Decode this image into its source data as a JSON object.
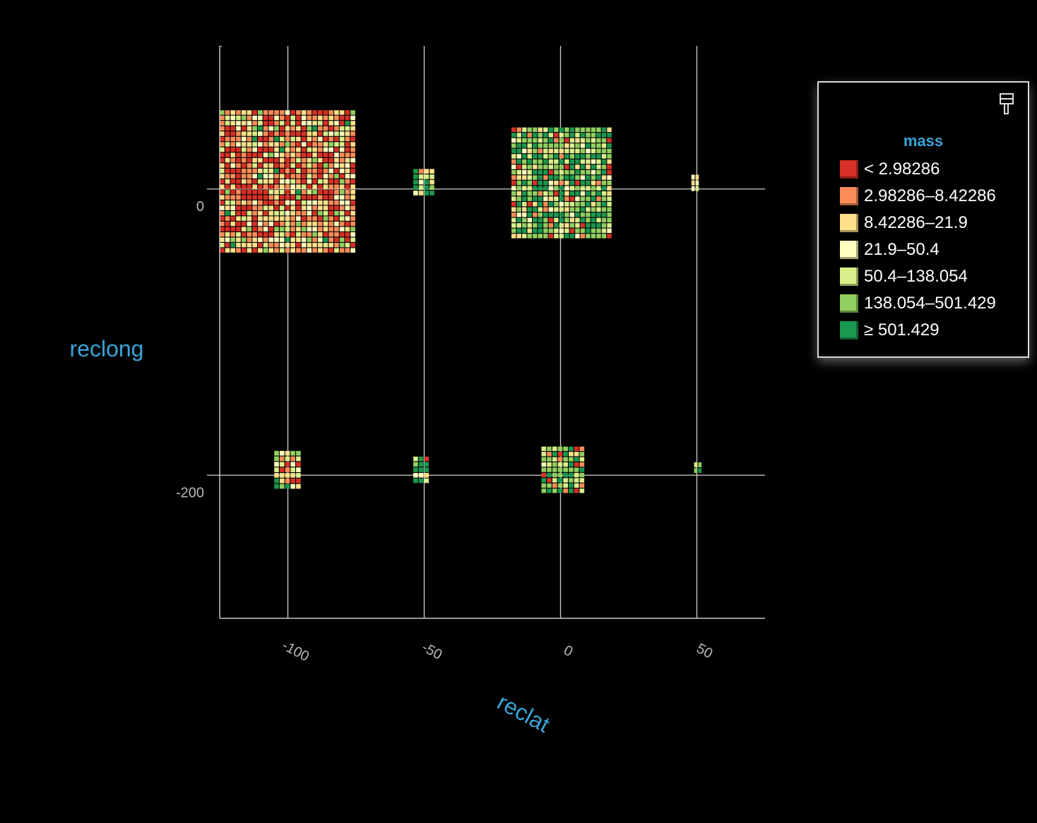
{
  "chart_data": {
    "type": "heatmap",
    "xlabel": "reclat",
    "ylabel": "reclong",
    "x_ticks": [
      -100,
      -50,
      0,
      50
    ],
    "x_tick_labels": [
      "-100",
      "-50",
      "0",
      "50"
    ],
    "y_ticks": [
      0,
      -200
    ],
    "y_tick_labels": [
      "0",
      "-200"
    ],
    "xlim": [
      -125,
      75
    ],
    "ylim": [
      -300,
      100
    ],
    "grid": true,
    "legend_position": "top-right",
    "color_field": "mass",
    "legend": {
      "title": "mass",
      "bins": [
        {
          "label": "< 2.98286",
          "color": "#d73027"
        },
        {
          "label": "2.98286–8.42286",
          "color": "#fc8d59"
        },
        {
          "label": "8.42286–21.9",
          "color": "#fee08b"
        },
        {
          "label": "21.9–50.4",
          "color": "#ffffbf"
        },
        {
          "label": "50.4–138.054",
          "color": "#d9ef8b"
        },
        {
          "label": "138.054–501.429",
          "color": "#91cf60"
        },
        {
          "label": "≥ 501.429",
          "color": "#1a9850"
        }
      ]
    },
    "clusters": [
      {
        "x": [
          -125,
          -75
        ],
        "y": [
          -45,
          55
        ],
        "weights": [
          30,
          22,
          20,
          12,
          9,
          5,
          2
        ]
      },
      {
        "x": [
          -54,
          -46
        ],
        "y": [
          -5,
          14
        ],
        "weights": [
          0,
          1,
          4,
          3,
          3,
          4,
          7
        ]
      },
      {
        "x": [
          -18,
          19
        ],
        "y": [
          -35,
          43
        ],
        "weights": [
          5,
          5,
          7,
          7,
          17,
          30,
          26
        ]
      },
      {
        "x": [
          48,
          51
        ],
        "y": [
          -2,
          10
        ],
        "weights": [
          0,
          0,
          2,
          4,
          3,
          3,
          2
        ]
      },
      {
        "x": [
          -105,
          -95
        ],
        "y": [
          -210,
          -183
        ],
        "weights": [
          6,
          8,
          16,
          16,
          10,
          5,
          4
        ]
      },
      {
        "x": [
          -54,
          -48
        ],
        "y": [
          -206,
          -187
        ],
        "weights": [
          1,
          1,
          5,
          5,
          6,
          8,
          10
        ]
      },
      {
        "x": [
          -7,
          9
        ],
        "y": [
          -213,
          -180
        ],
        "weights": [
          7,
          8,
          8,
          6,
          16,
          28,
          26
        ]
      },
      {
        "x": [
          49,
          52
        ],
        "y": [
          -199,
          -191
        ],
        "weights": [
          0,
          0,
          0,
          0,
          2,
          5,
          6
        ]
      },
      {
        "x": [
          -125,
          -124
        ],
        "y": [
          99,
          100
        ],
        "weights": [
          0,
          0,
          1,
          1,
          0,
          0,
          0
        ]
      }
    ]
  }
}
